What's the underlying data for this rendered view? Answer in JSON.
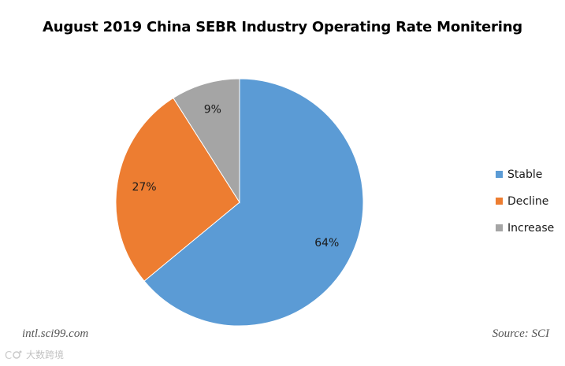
{
  "chart_data": {
    "type": "pie",
    "title": "August 2019 China SEBR Industry Operating Rate Monitering",
    "categories": [
      "Stable",
      "Decline",
      "Increase"
    ],
    "values": [
      64,
      27,
      9
    ],
    "value_labels": [
      "64%",
      "27%",
      "9%"
    ],
    "unit": "%",
    "start_angle": "12 o'clock",
    "direction": "clockwise",
    "colors": [
      "#5b9bd5",
      "#ed7d31",
      "#a5a5a5"
    ],
    "legend_position": "right"
  },
  "footer": {
    "website": "intl.sci99.com",
    "source": "Source: SCI"
  },
  "watermark": {
    "text": "大数跨境",
    "logo_icon": "watermark-logo-icon"
  }
}
